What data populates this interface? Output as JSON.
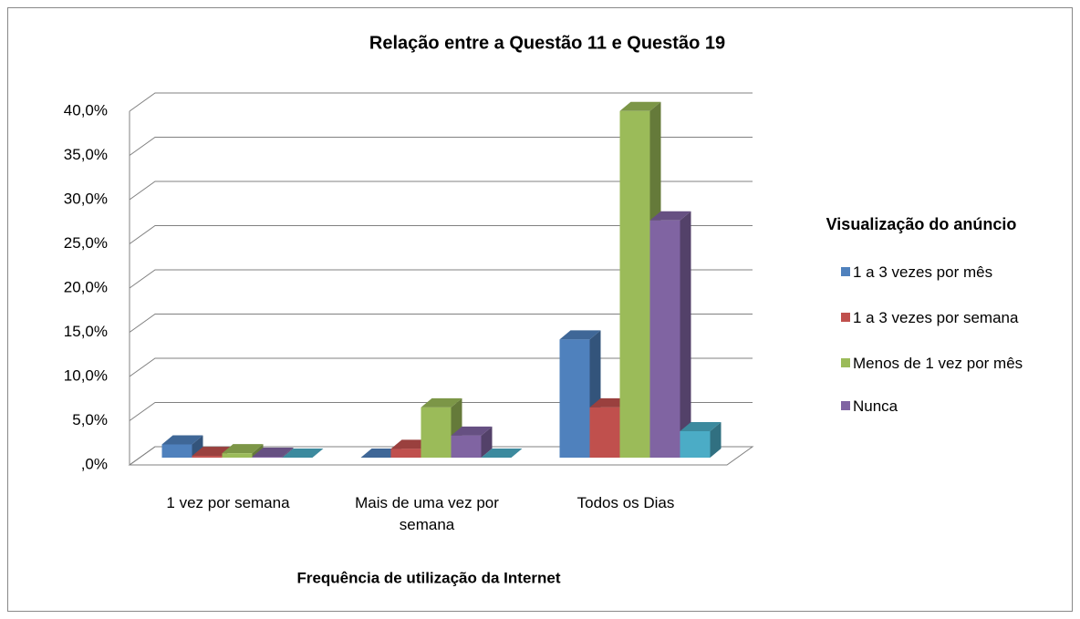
{
  "chart_data": {
    "type": "bar3d",
    "title": "Relação entre a Questão 11 e Questão 19",
    "x_label": "Frequência de utilização da Internet",
    "legend_title": "Visualização do anúncio",
    "categories": [
      "1 vez por semana",
      "Mais de uma vez por semana",
      "Todos os Dias"
    ],
    "series": [
      {
        "name": "1 a 3 vezes por mês",
        "color": "#4f81bd",
        "values": [
          1.5,
          0,
          13.4
        ]
      },
      {
        "name": "1 a 3 vezes por semana",
        "color": "#c0504d",
        "values": [
          0.2,
          1.0,
          5.7
        ]
      },
      {
        "name": "Menos de 1 vez por mês",
        "color": "#9bbb59",
        "values": [
          0.5,
          5.7,
          39.3
        ]
      },
      {
        "name": "Nunca",
        "color": "#8064a2",
        "values": [
          0.1,
          2.5,
          26.9
        ]
      },
      {
        "color": "#4bacc6",
        "values": [
          0,
          0,
          3.0
        ]
      }
    ],
    "ylim": [
      0,
      40
    ],
    "yticks": [
      {
        "value": 0,
        "label": ",0%"
      },
      {
        "value": 5,
        "label": "5,0%"
      },
      {
        "value": 10,
        "label": "10,0%"
      },
      {
        "value": 15,
        "label": "15,0%"
      },
      {
        "value": 20,
        "label": "20,0%"
      },
      {
        "value": 25,
        "label": "25,0%"
      },
      {
        "value": 30,
        "label": "30,0%"
      },
      {
        "value": 35,
        "label": "35,0%"
      },
      {
        "value": 40,
        "label": "40,0%"
      }
    ],
    "grid": true
  }
}
